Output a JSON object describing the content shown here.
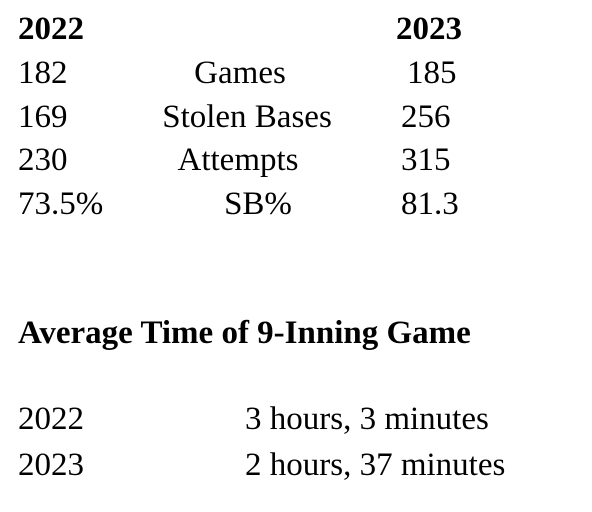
{
  "stats_table": {
    "header_left": "2022",
    "header_right": "2023",
    "rows": [
      {
        "left": "182",
        "label": "Games",
        "right": "185"
      },
      {
        "left": "169",
        "label": "Stolen Bases",
        "right": "256"
      },
      {
        "left": "230",
        "label": "Attempts",
        "right": "315"
      },
      {
        "left": "73.5%",
        "label": "SB%",
        "right": "81.3"
      }
    ]
  },
  "game_time": {
    "heading": "Average Time of 9-Inning Game",
    "rows": [
      {
        "year": "2022",
        "value": "3 hours, 3 minutes"
      },
      {
        "year": "2023",
        "value": "2 hours, 37 minutes"
      }
    ]
  }
}
